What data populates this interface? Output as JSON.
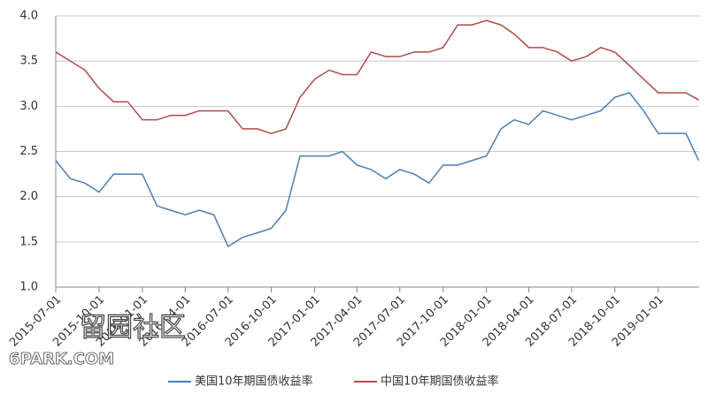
{
  "chart_data": {
    "type": "line",
    "x": [
      "2015-07-01",
      "2015-08-01",
      "2015-09-01",
      "2015-10-01",
      "2015-11-01",
      "2015-12-01",
      "2016-01-01",
      "2016-02-01",
      "2016-03-01",
      "2016-04-01",
      "2016-05-01",
      "2016-06-01",
      "2016-07-01",
      "2016-08-01",
      "2016-09-01",
      "2016-10-01",
      "2016-11-01",
      "2016-12-01",
      "2017-01-01",
      "2017-02-01",
      "2017-03-01",
      "2017-04-01",
      "2017-05-01",
      "2017-06-01",
      "2017-07-01",
      "2017-08-01",
      "2017-09-01",
      "2017-10-01",
      "2017-11-01",
      "2017-12-01",
      "2018-01-01",
      "2018-02-01",
      "2018-03-01",
      "2018-04-01",
      "2018-05-01",
      "2018-06-01",
      "2018-07-01",
      "2018-08-01",
      "2018-09-01",
      "2018-10-01",
      "2018-11-01",
      "2018-12-01",
      "2019-01-01",
      "2019-02-01",
      "2019-03-01",
      "2019-03-28"
    ],
    "series": [
      {
        "name": "美国10年期国债收益率",
        "color": "#4a7eb0",
        "values": [
          2.4,
          2.2,
          2.15,
          2.05,
          2.25,
          2.25,
          2.25,
          1.9,
          1.85,
          1.8,
          1.85,
          1.8,
          1.45,
          1.55,
          1.6,
          1.65,
          1.85,
          2.45,
          2.45,
          2.45,
          2.5,
          2.35,
          2.3,
          2.2,
          2.3,
          2.25,
          2.15,
          2.35,
          2.35,
          2.4,
          2.45,
          2.75,
          2.85,
          2.8,
          2.95,
          2.9,
          2.85,
          2.9,
          2.95,
          3.1,
          3.15,
          2.95,
          2.7,
          2.7,
          2.7,
          2.4
        ]
      },
      {
        "name": "中国10年期国债收益率",
        "color": "#b04a48",
        "values": [
          3.6,
          3.5,
          3.4,
          3.2,
          3.05,
          3.05,
          2.85,
          2.85,
          2.9,
          2.9,
          2.95,
          2.95,
          2.95,
          2.75,
          2.75,
          2.7,
          2.75,
          3.1,
          3.3,
          3.4,
          3.35,
          3.35,
          3.6,
          3.55,
          3.55,
          3.6,
          3.6,
          3.65,
          3.9,
          3.9,
          3.95,
          3.9,
          3.8,
          3.65,
          3.65,
          3.6,
          3.5,
          3.55,
          3.65,
          3.6,
          3.45,
          3.3,
          3.15,
          3.15,
          3.15,
          3.07
        ]
      }
    ],
    "xlim": [
      "2015-07-01",
      "2019-03-29"
    ],
    "xticks": [
      "2015-07-01",
      "2015-10-01",
      "2016-01-01",
      "2016-04-01",
      "2016-07-01",
      "2016-10-01",
      "2017-01-01",
      "2017-04-01",
      "2017-07-01",
      "2017-10-01",
      "2018-01-01",
      "2018-04-01",
      "2018-07-01",
      "2018-10-01",
      "2019-01-01"
    ],
    "ylim": [
      1,
      4
    ],
    "yticks": [
      {
        "value": 1,
        "label": "1.0"
      },
      {
        "value": 1.5,
        "label": "1.5"
      },
      {
        "value": 2,
        "label": "2.0"
      },
      {
        "value": 2.5,
        "label": "2.5"
      },
      {
        "value": 3,
        "label": "3.0"
      },
      {
        "value": 3.5,
        "label": "3.5"
      },
      {
        "value": 4,
        "label": "4.0"
      }
    ],
    "grid": true,
    "legend": "bottom",
    "watermark": {
      "text": "留园社区",
      "site": "6PARK.COM"
    }
  }
}
